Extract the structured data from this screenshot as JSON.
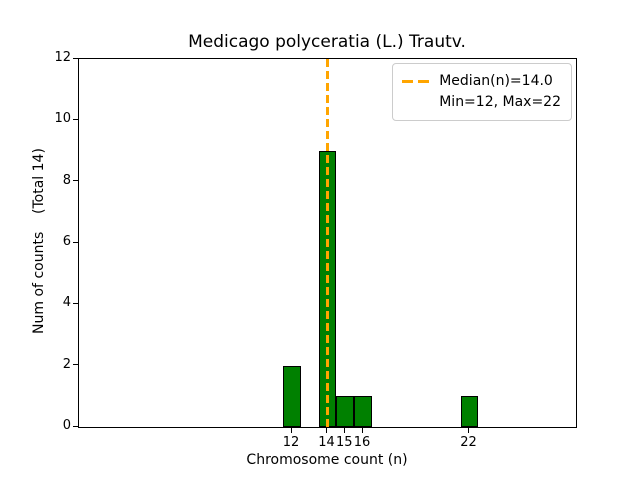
{
  "title": "Medicago polyceratia (L.) Trautv.",
  "chart_data": {
    "type": "bar",
    "title": "Medicago polyceratia (L.) Trautv.",
    "xlabel": "Chromosome count (n)",
    "ylabel": "Num of counts    (Total 14)",
    "total_counts": 14,
    "categories": [
      12,
      14,
      15,
      16,
      22
    ],
    "values": [
      2,
      9,
      1,
      1,
      1
    ],
    "bar_width": 1,
    "xlim": [
      0,
      28
    ],
    "ylim": [
      0,
      12
    ],
    "xticks": [
      12,
      14,
      15,
      16,
      22
    ],
    "yticks": [
      0,
      2,
      4,
      6,
      8,
      10,
      12
    ],
    "grid": false,
    "median_line": {
      "x": 14.0,
      "orientation": "vertical",
      "style": "dashed"
    },
    "legend": {
      "position": "upper right",
      "entries": [
        "Median(n)=14.0",
        "Min=12, Max=22"
      ]
    },
    "stats": {
      "median": 14.0,
      "min": 12,
      "max": 22
    },
    "colors": {
      "bar_fill": "#008000",
      "bar_edge": "#000000",
      "median": "#ffa500",
      "axis": "#000000",
      "background": "#ffffff",
      "legend_border": "#cccccc",
      "text": "#000000"
    }
  }
}
